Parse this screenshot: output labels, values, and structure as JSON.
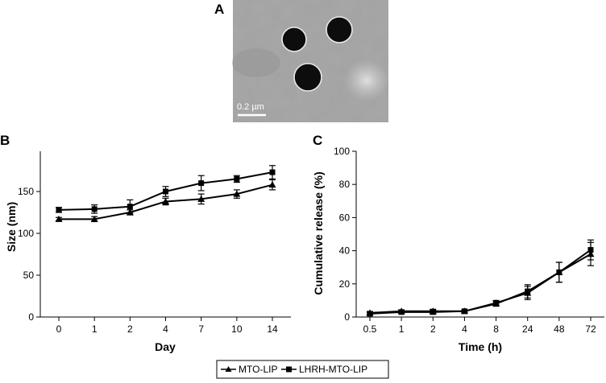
{
  "panels": {
    "a": "A",
    "b": "B",
    "c": "C"
  },
  "tem": {
    "scale_bar": "0.2 µm"
  },
  "legend": {
    "items": [
      {
        "label": "MTO-LIP",
        "marker": "triangle"
      },
      {
        "label": "LHRH-MTO-LIP",
        "marker": "square"
      }
    ]
  },
  "colors": {
    "series": "#000000",
    "tem_background": "#a2a2a2",
    "particle": "#0d0d0d"
  },
  "chart_data": [
    {
      "panel": "B",
      "type": "line",
      "xlabel": "Day",
      "ylabel": "Size (nm)",
      "categories": [
        "0",
        "1",
        "2",
        "4",
        "7",
        "10",
        "14"
      ],
      "ylim": [
        0,
        200
      ],
      "yticks": [
        0,
        50,
        100,
        150
      ],
      "series": [
        {
          "name": "MTO-LIP",
          "marker": "triangle",
          "values": [
            117,
            117,
            125,
            138,
            141,
            147,
            158
          ],
          "errors": [
            2,
            3,
            3,
            4,
            6,
            5,
            6
          ]
        },
        {
          "name": "LHRH-MTO-LIP",
          "marker": "square",
          "values": [
            128,
            129,
            132,
            150,
            160,
            165,
            173
          ],
          "errors": [
            3,
            5,
            8,
            6,
            9,
            4,
            8
          ]
        }
      ]
    },
    {
      "panel": "C",
      "type": "line",
      "xlabel": "Time (h)",
      "ylabel": "Cumulative release (%)",
      "categories": [
        "0.5",
        "1",
        "2",
        "4",
        "8",
        "24",
        "48",
        "72"
      ],
      "ylim": [
        0,
        100
      ],
      "yticks": [
        0,
        20,
        40,
        60,
        80,
        100
      ],
      "series": [
        {
          "name": "MTO-LIP",
          "marker": "triangle",
          "values": [
            2.5,
            3.5,
            3.5,
            3.5,
            8.5,
            14.5,
            27,
            38
          ],
          "errors": [
            0.8,
            0.8,
            1.2,
            0.7,
            1.5,
            4,
            6,
            7
          ]
        },
        {
          "name": "LHRH-MTO-LIP",
          "marker": "square",
          "values": [
            2,
            3,
            3,
            3.5,
            8,
            15.5,
            27,
            40.5
          ],
          "errors": [
            0.8,
            0.8,
            1.2,
            0.7,
            1.5,
            4,
            6,
            6
          ]
        }
      ]
    }
  ]
}
